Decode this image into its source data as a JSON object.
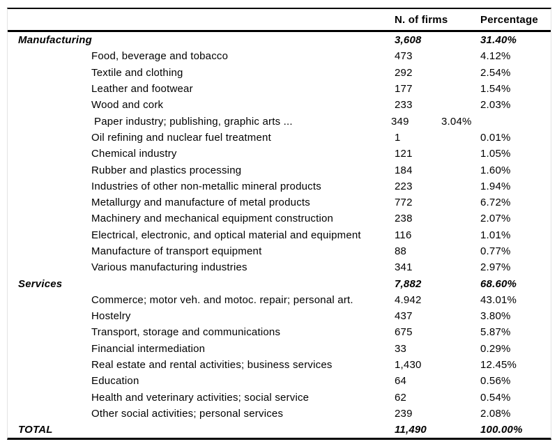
{
  "table": {
    "headers": {
      "firms": "N. of firms",
      "percentage": "Percentage"
    },
    "rows": [
      {
        "label": "Manufacturing",
        "firms": "3,608",
        "pct": "31.40%",
        "style": "section"
      },
      {
        "label": "Food, beverage and tobacco",
        "firms": "473",
        "pct": "4.12%",
        "style": "sub"
      },
      {
        "label": "Textile and clothing",
        "firms": "292",
        "pct": "2.54%",
        "style": "sub"
      },
      {
        "label": "Leather and footwear",
        "firms": "177",
        "pct": "1.54%",
        "style": "sub"
      },
      {
        "label": "Wood and cork",
        "firms": "233",
        "pct": "2.03%",
        "style": "sub"
      },
      {
        "label": "Paper industry; publishing, graphic arts ...",
        "firms": "349",
        "pct": "3.04%",
        "style": "sub",
        "variant": "misaligned"
      },
      {
        "label": "Oil refining and nuclear fuel treatment",
        "firms": "1",
        "pct": "0.01%",
        "style": "sub"
      },
      {
        "label": "Chemical industry",
        "firms": "121",
        "pct": "1.05%",
        "style": "sub"
      },
      {
        "label": "Rubber and plastics processing",
        "firms": "184",
        "pct": "1.60%",
        "style": "sub"
      },
      {
        "label": "Industries of other non-metallic mineral products",
        "firms": "223",
        "pct": "1.94%",
        "style": "sub"
      },
      {
        "label": "Metallurgy and manufacture of metal products",
        "firms": "772",
        "pct": "6.72%",
        "style": "sub"
      },
      {
        "label": "Machinery and mechanical equipment construction",
        "firms": "238",
        "pct": "2.07%",
        "style": "sub"
      },
      {
        "label": "Electrical, electronic, and optical material and equipment",
        "firms": "116",
        "pct": "1.01%",
        "style": "sub"
      },
      {
        "label": "Manufacture of transport equipment",
        "firms": "88",
        "pct": "0.77%",
        "style": "sub"
      },
      {
        "label": "Various manufacturing industries",
        "firms": "341",
        "pct": "2.97%",
        "style": "sub"
      },
      {
        "label": "Services",
        "firms": "7,882",
        "pct": "68.60%",
        "style": "section"
      },
      {
        "label": "Commerce; motor veh. and motoc. repair; personal art.",
        "firms": "4.942",
        "pct": "43.01%",
        "style": "sub"
      },
      {
        "label": "Hostelry",
        "firms": "437",
        "pct": "3.80%",
        "style": "sub"
      },
      {
        "label": "Transport, storage and communications",
        "firms": "675",
        "pct": "5.87%",
        "style": "sub"
      },
      {
        "label": "Financial intermediation",
        "firms": "33",
        "pct": "0.29%",
        "style": "sub"
      },
      {
        "label": "Real estate and rental activities; business services",
        "firms": "1,430",
        "pct": "12.45%",
        "style": "sub"
      },
      {
        "label": "Education",
        "firms": "64",
        "pct": "0.56%",
        "style": "sub"
      },
      {
        "label": "Health and veterinary activities; social service",
        "firms": "62",
        "pct": "0.54%",
        "style": "sub"
      },
      {
        "label": "Other social activities; personal services",
        "firms": "239",
        "pct": "2.08%",
        "style": "sub"
      },
      {
        "label": "TOTAL",
        "firms": "11,490",
        "pct": "100.00%",
        "style": "section"
      }
    ]
  }
}
